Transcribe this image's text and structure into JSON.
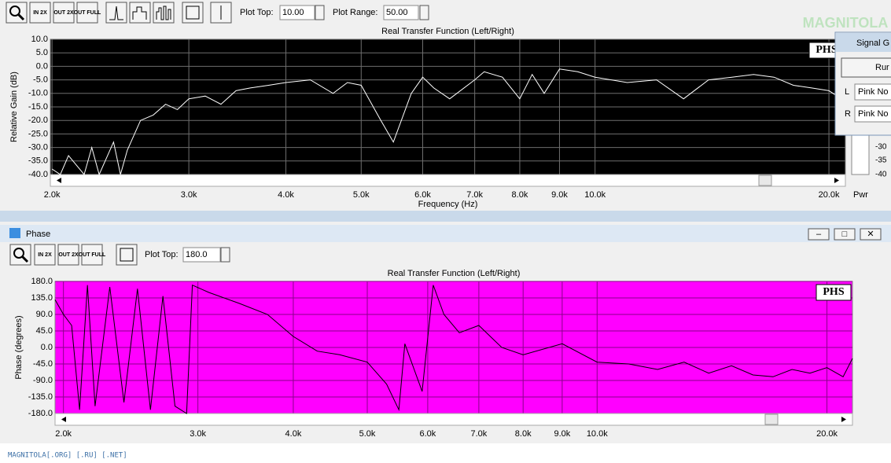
{
  "toolbar": {
    "buttons": [
      "IN 2X",
      "OUT 2X",
      "OUT FULL"
    ],
    "plot_top_label": "Plot Top:",
    "plot_top_value": "10.00",
    "plot_range_label": "Plot Range:",
    "plot_range_value": "50.00"
  },
  "watermark": "MAGNITOLA",
  "signal_window": {
    "title": "Signal G",
    "run": "Rur",
    "left": "L",
    "right": "R",
    "left_value": "Pink No",
    "right_value": "Pink No",
    "meter_ticks": [
      "-30",
      "-35",
      "-40"
    ],
    "meter_label": "Pwr"
  },
  "phase_window": {
    "title": "Phase",
    "buttons": [
      "IN 2X",
      "OUT 2X",
      "OUT FULL"
    ],
    "plot_top_label": "Plot Top:",
    "plot_top_value": "180.0"
  },
  "footer": "MAGNITOLA[.ORG] [.RU] [.NET]",
  "chart_data": [
    {
      "type": "line",
      "title": "Real Transfer Function (Left/Right)",
      "x_label": "Frequency (Hz)",
      "y_label": "Relative Gain (dB)",
      "badge": "PHS",
      "log_x": true,
      "grid": true,
      "background": "#000000",
      "grid_color": "#6e6e6e",
      "color": "#ffffff",
      "xlim": [
        1990,
        21000
      ],
      "ylim": [
        -40,
        10
      ],
      "xticks": [
        {
          "value": 2000,
          "label": "2.0k"
        },
        {
          "value": 3000,
          "label": "3.0k"
        },
        {
          "value": 4000,
          "label": "4.0k"
        },
        {
          "value": 5000,
          "label": "5.0k"
        },
        {
          "value": 6000,
          "label": "6.0k"
        },
        {
          "value": 7000,
          "label": "7.0k"
        },
        {
          "value": 8000,
          "label": "8.0k"
        },
        {
          "value": 9000,
          "label": "9.0k"
        },
        {
          "value": 10000,
          "label": "10.0k"
        },
        {
          "value": 20000,
          "label": "20.0k"
        }
      ],
      "yticks": [
        {
          "value": 10,
          "label": "10.0"
        },
        {
          "value": 5,
          "label": "5.0"
        },
        {
          "value": 0,
          "label": "0.0"
        },
        {
          "value": -5,
          "label": "-5.0"
        },
        {
          "value": -10,
          "label": "-10.0"
        },
        {
          "value": -15,
          "label": "-15.0"
        },
        {
          "value": -20,
          "label": "-20.0"
        },
        {
          "value": -25,
          "label": "-25.0"
        },
        {
          "value": -30,
          "label": "-30.0"
        },
        {
          "value": -35,
          "label": "-35.0"
        },
        {
          "value": -40,
          "label": "-40.0"
        }
      ],
      "x": [
        2000,
        2050,
        2100,
        2200,
        2250,
        2300,
        2400,
        2450,
        2500,
        2600,
        2700,
        2800,
        2900,
        3000,
        3150,
        3300,
        3450,
        3600,
        3800,
        4000,
        4300,
        4600,
        4800,
        5000,
        5300,
        5500,
        5800,
        6000,
        6200,
        6500,
        7000,
        7200,
        7600,
        8000,
        8300,
        8600,
        9000,
        9500,
        10000,
        11000,
        12000,
        13000,
        14000,
        15000,
        16000,
        17000,
        18000,
        19000,
        20000,
        21000
      ],
      "values": [
        -38,
        -40,
        -33,
        -40,
        -30,
        -40,
        -28,
        -40,
        -31,
        -20,
        -18,
        -14,
        -16,
        -12,
        -11,
        -14,
        -9,
        -8,
        -7,
        -6,
        -5,
        -10,
        -6,
        -7,
        -20,
        -28,
        -10,
        -4,
        -8,
        -12,
        -5,
        -2,
        -4,
        -12,
        -3,
        -10,
        -1,
        -2,
        -4,
        -6,
        -5,
        -12,
        -5,
        -4,
        -3,
        -4,
        -7,
        -8,
        -9,
        -13
      ]
    },
    {
      "type": "line",
      "title": "Real Transfer Function (Left/Right)",
      "y_label": "Phase (degrees)",
      "badge": "PHS",
      "log_x": true,
      "grid": true,
      "background": "#ff00ff",
      "grid_color": "#8a008a",
      "color": "#000000",
      "xlim": [
        1950,
        21600
      ],
      "ylim": [
        -180,
        180
      ],
      "xticks": [
        {
          "value": 2000,
          "label": "2.0k"
        },
        {
          "value": 3000,
          "label": "3.0k"
        },
        {
          "value": 4000,
          "label": "4.0k"
        },
        {
          "value": 5000,
          "label": "5.0k"
        },
        {
          "value": 6000,
          "label": "6.0k"
        },
        {
          "value": 7000,
          "label": "7.0k"
        },
        {
          "value": 8000,
          "label": "8.0k"
        },
        {
          "value": 9000,
          "label": "9.0k"
        },
        {
          "value": 10000,
          "label": "10.0k"
        },
        {
          "value": 20000,
          "label": "20.0k"
        }
      ],
      "yticks": [
        {
          "value": 180,
          "label": "180.0"
        },
        {
          "value": 135,
          "label": "135.0"
        },
        {
          "value": 90,
          "label": "90.0"
        },
        {
          "value": 45,
          "label": "45.0"
        },
        {
          "value": 0,
          "label": "0.0"
        },
        {
          "value": -45,
          "label": "-45.0"
        },
        {
          "value": -90,
          "label": "-90.0"
        },
        {
          "value": -135,
          "label": "-135.0"
        },
        {
          "value": -180,
          "label": "-180.0"
        }
      ],
      "x": [
        1950,
        2000,
        2050,
        2100,
        2150,
        2200,
        2300,
        2400,
        2500,
        2600,
        2700,
        2800,
        2900,
        2950,
        3100,
        3400,
        3700,
        4000,
        4300,
        4600,
        5000,
        5300,
        5500,
        5600,
        5900,
        6100,
        6300,
        6600,
        7000,
        7500,
        8000,
        9000,
        10000,
        11000,
        12000,
        13000,
        14000,
        15000,
        16000,
        17000,
        18000,
        19000,
        20000,
        21000,
        21600
      ],
      "values": [
        130,
        90,
        60,
        -170,
        170,
        -160,
        165,
        -150,
        160,
        -170,
        140,
        -160,
        -180,
        170,
        150,
        120,
        90,
        30,
        -10,
        -20,
        -40,
        -100,
        -170,
        10,
        -120,
        170,
        90,
        40,
        60,
        0,
        -20,
        10,
        -40,
        -45,
        -60,
        -40,
        -70,
        -50,
        -75,
        -80,
        -60,
        -70,
        -55,
        -80,
        -30
      ]
    }
  ]
}
